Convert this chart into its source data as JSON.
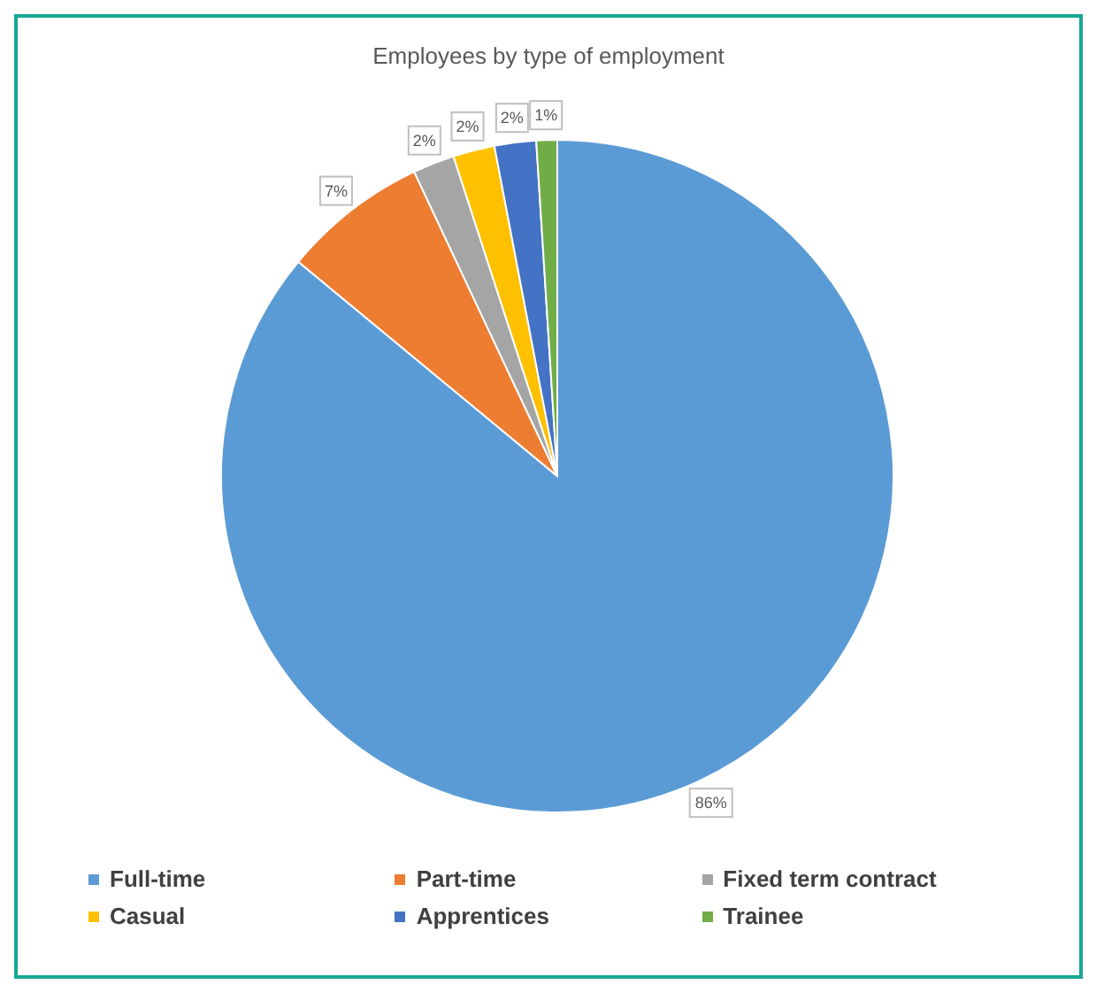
{
  "chart_data": {
    "type": "pie",
    "title": "Employees by type of employment",
    "categories": [
      "Full-time",
      "Part-time",
      "Fixed term contract",
      "Casual",
      "Apprentices",
      "Trainee"
    ],
    "values": [
      86,
      7,
      2,
      2,
      2,
      1
    ],
    "colors": [
      "#5b9bd5",
      "#ed7d31",
      "#a5a5a5",
      "#ffc000",
      "#4472c4",
      "#70ad47"
    ],
    "value_labels": [
      "86%",
      "7%",
      "2%",
      "2%",
      "2%",
      "1%"
    ],
    "legend": "bottom"
  }
}
